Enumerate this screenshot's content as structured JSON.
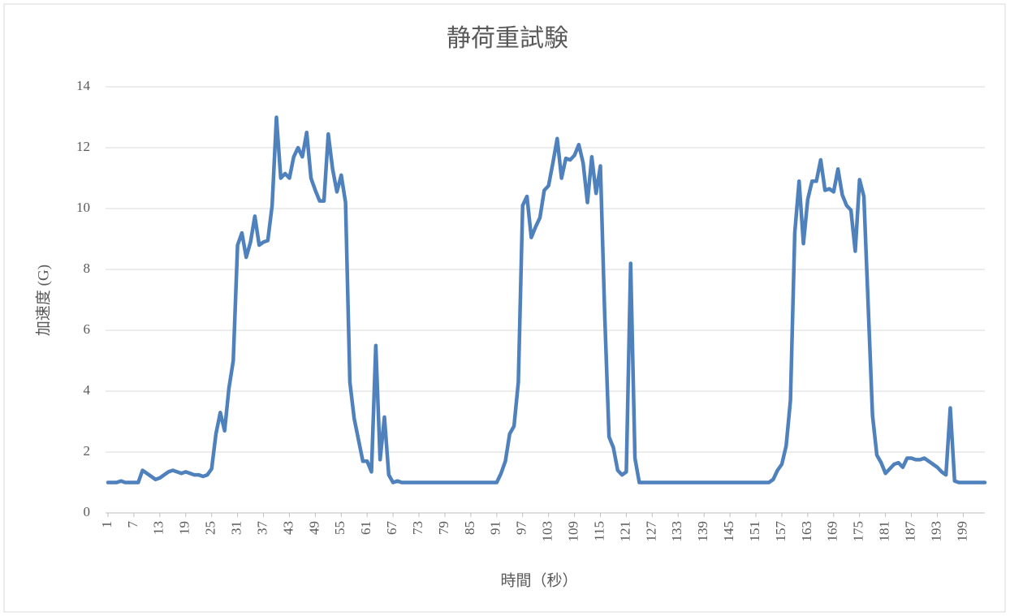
{
  "chart_data": {
    "type": "line",
    "title": "静荷重試験",
    "x_label": "時間（秒）",
    "y_label": "加速度 (G)",
    "x": [
      1,
      2,
      3,
      4,
      5,
      6,
      7,
      8,
      9,
      10,
      11,
      12,
      13,
      14,
      15,
      16,
      17,
      18,
      19,
      20,
      21,
      22,
      23,
      24,
      25,
      26,
      27,
      28,
      29,
      30,
      31,
      32,
      33,
      34,
      35,
      36,
      37,
      38,
      39,
      40,
      41,
      42,
      43,
      44,
      45,
      46,
      47,
      48,
      49,
      50,
      51,
      52,
      53,
      54,
      55,
      56,
      57,
      58,
      59,
      60,
      61,
      62,
      63,
      64,
      65,
      66,
      67,
      68,
      69,
      70,
      71,
      72,
      73,
      74,
      75,
      76,
      77,
      78,
      79,
      80,
      81,
      82,
      83,
      84,
      85,
      86,
      87,
      88,
      89,
      90,
      91,
      92,
      93,
      94,
      95,
      96,
      97,
      98,
      99,
      100,
      101,
      102,
      103,
      104,
      105,
      106,
      107,
      108,
      109,
      110,
      111,
      112,
      113,
      114,
      115,
      116,
      117,
      118,
      119,
      120,
      121,
      122,
      123,
      124,
      125,
      126,
      127,
      128,
      129,
      130,
      131,
      132,
      133,
      134,
      135,
      136,
      137,
      138,
      139,
      140,
      141,
      142,
      143,
      144,
      145,
      146,
      147,
      148,
      149,
      150,
      151,
      152,
      153,
      154,
      155,
      156,
      157,
      158,
      159,
      160,
      161,
      162,
      163,
      164,
      165,
      166,
      167,
      168,
      169,
      170,
      171,
      172,
      173,
      174,
      175,
      176,
      177,
      178,
      179,
      180,
      181,
      182,
      183,
      184,
      185,
      186,
      187,
      188,
      189,
      190,
      191,
      192,
      193,
      194,
      195,
      196,
      197,
      198,
      199,
      200,
      201,
      202,
      203,
      204
    ],
    "values": [
      1,
      1,
      1,
      1.05,
      1,
      1,
      1,
      1,
      1.4,
      1.3,
      1.2,
      1.1,
      1.15,
      1.25,
      1.35,
      1.4,
      1.35,
      1.3,
      1.35,
      1.3,
      1.25,
      1.25,
      1.2,
      1.25,
      1.45,
      2.6,
      3.3,
      2.7,
      4.1,
      5.0,
      8.8,
      9.2,
      8.4,
      8.9,
      9.75,
      8.8,
      8.9,
      8.95,
      10.1,
      13.0,
      11.0,
      11.15,
      11.0,
      11.7,
      12.0,
      11.7,
      12.5,
      11.0,
      10.6,
      10.25,
      10.25,
      12.45,
      11.3,
      10.55,
      11.1,
      10.2,
      4.3,
      3.1,
      2.4,
      1.7,
      1.7,
      1.35,
      5.5,
      1.75,
      3.15,
      1.25,
      1.0,
      1.05,
      1,
      1,
      1,
      1,
      1,
      1,
      1,
      1,
      1,
      1,
      1,
      1,
      1,
      1,
      1,
      1,
      1,
      1,
      1,
      1,
      1,
      1,
      1,
      1.3,
      1.7,
      2.6,
      2.85,
      4.3,
      10.1,
      10.4,
      9.05,
      9.4,
      9.7,
      10.6,
      10.75,
      11.5,
      12.3,
      11.0,
      11.65,
      11.6,
      11.75,
      12.1,
      11.5,
      10.2,
      11.7,
      10.5,
      11.4,
      6.5,
      2.5,
      2.15,
      1.4,
      1.25,
      1.35,
      8.2,
      1.8,
      1.0,
      1,
      1,
      1,
      1,
      1,
      1,
      1,
      1,
      1,
      1,
      1,
      1,
      1,
      1,
      1,
      1,
      1,
      1,
      1,
      1,
      1,
      1,
      1,
      1,
      1,
      1,
      1,
      1,
      1,
      1,
      1.1,
      1.4,
      1.6,
      2.2,
      3.7,
      9.2,
      10.9,
      8.85,
      10.3,
      10.9,
      10.9,
      11.6,
      10.6,
      10.65,
      10.55,
      11.3,
      10.45,
      10.1,
      9.95,
      8.6,
      10.95,
      10.4,
      6.8,
      3.2,
      1.9,
      1.65,
      1.3,
      1.45,
      1.6,
      1.65,
      1.5,
      1.8,
      1.8,
      1.75,
      1.75,
      1.8,
      1.7,
      1.6,
      1.5,
      1.35,
      1.25,
      3.45,
      1.05,
      1,
      1,
      1,
      1,
      1,
      1,
      1
    ],
    "color": "#4f81bd",
    "xlim": [
      1,
      204
    ],
    "xticks": [
      1,
      7,
      13,
      19,
      25,
      31,
      37,
      43,
      49,
      55,
      61,
      67,
      73,
      79,
      85,
      91,
      97,
      103,
      109,
      115,
      121,
      127,
      133,
      139,
      145,
      151,
      157,
      163,
      169,
      175,
      181,
      187,
      193,
      199
    ],
    "ylim": [
      0,
      14
    ],
    "yticks": [
      0,
      2,
      4,
      6,
      8,
      10,
      12,
      14
    ],
    "grid": true
  }
}
